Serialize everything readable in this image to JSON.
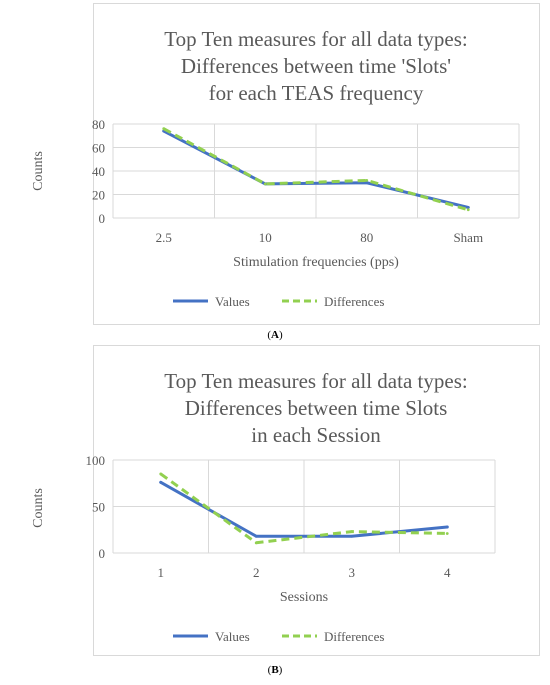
{
  "chart_data": [
    {
      "type": "line",
      "panel_label": "A",
      "title_lines": [
        "Top Ten measures for all data types:",
        "Differences between time 'Slots'",
        "for each TEAS frequency"
      ],
      "xlabel": "Stimulation frequencies (pps)",
      "ylabel": "Counts",
      "categories": [
        "2.5",
        "10",
        "80",
        "Sham"
      ],
      "ylim": [
        0,
        80
      ],
      "yticks": [
        "0",
        "20",
        "40",
        "60",
        "80"
      ],
      "grid": true,
      "legend_position": "bottom",
      "series": [
        {
          "name": "Values",
          "values": [
            74,
            29,
            30,
            9
          ],
          "color": "#4472C4",
          "dash": "solid"
        },
        {
          "name": "Differences",
          "values": [
            76,
            29,
            32,
            7
          ],
          "color": "#92D050",
          "dash": "dashed"
        }
      ]
    },
    {
      "type": "line",
      "panel_label": "B",
      "title_lines": [
        "Top Ten measures for all data types:",
        "Differences between time Slots",
        "in each Session"
      ],
      "xlabel": "Sessions",
      "ylabel": "Counts",
      "categories": [
        "1",
        "2",
        "3",
        "4"
      ],
      "ylim": [
        0,
        100
      ],
      "yticks": [
        "0",
        "50",
        "100"
      ],
      "grid": true,
      "legend_position": "bottom",
      "series": [
        {
          "name": "Values",
          "values": [
            76,
            18,
            18,
            28
          ],
          "color": "#4472C4",
          "dash": "solid"
        },
        {
          "name": "Differences",
          "values": [
            85,
            11,
            23,
            21
          ],
          "color": "#92D050",
          "dash": "dashed"
        }
      ]
    }
  ]
}
